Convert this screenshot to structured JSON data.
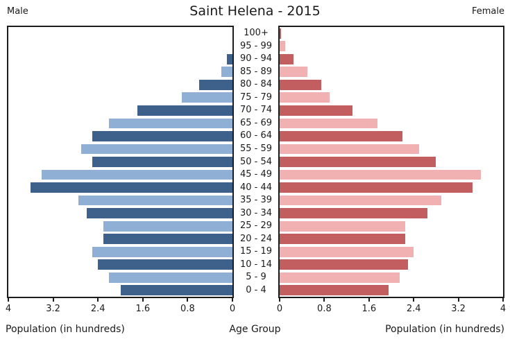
{
  "title": "Saint Helena - 2015",
  "header": {
    "male_label": "Male",
    "female_label": "Female"
  },
  "captions": {
    "xlabel_left": "Population (in hundreds)",
    "xlabel_center": "Age Group",
    "xlabel_right": "Population (in hundreds)"
  },
  "chart_data": {
    "type": "bar",
    "variant": "population_pyramid",
    "title": "Saint Helena - 2015",
    "xlabel": "Population (in hundreds)",
    "center_axis_label": "Age Group",
    "xlim": [
      0,
      4
    ],
    "male_axis_ticks": [
      4,
      3.2,
      2.4,
      1.6,
      0.8,
      0
    ],
    "female_axis_ticks": [
      0,
      0.8,
      1.6,
      2.4,
      3.2,
      4
    ],
    "grid": false,
    "legend_position": "Male top-left, Female top-right",
    "age_groups_top_to_bottom": [
      "100+",
      "95 - 99",
      "90 - 94",
      "85 - 89",
      "80 - 84",
      "75 - 79",
      "70 - 74",
      "65 - 69",
      "60 - 64",
      "55 - 59",
      "50 - 54",
      "45 - 49",
      "40 - 44",
      "35 - 39",
      "30 - 34",
      "25 - 29",
      "20 - 24",
      "15 - 19",
      "10 - 14",
      "5 - 9",
      "0 - 4"
    ],
    "series": [
      {
        "name": "Male",
        "side": "left",
        "values_top_to_bottom": [
          0,
          0,
          0.1,
          0.2,
          0.6,
          0.9,
          1.7,
          2.2,
          2.5,
          2.7,
          2.5,
          3.4,
          3.6,
          2.75,
          2.6,
          2.3,
          2.3,
          2.5,
          2.4,
          2.2,
          2.0
        ]
      },
      {
        "name": "Female",
        "side": "right",
        "values_top_to_bottom": [
          0.02,
          0.1,
          0.25,
          0.5,
          0.75,
          0.9,
          1.3,
          1.75,
          2.2,
          2.5,
          2.8,
          3.6,
          3.45,
          2.9,
          2.65,
          2.25,
          2.25,
          2.4,
          2.3,
          2.15,
          1.95
        ]
      }
    ],
    "colors": {
      "male_dark": "#3e618c",
      "male_light": "#8fafd4",
      "female_dark": "#c25e60",
      "female_light": "#f1b0b2",
      "axis": "#1c1c1c",
      "alternation": "bottom row (0 - 4) uses dark shade, alternating upward"
    }
  }
}
